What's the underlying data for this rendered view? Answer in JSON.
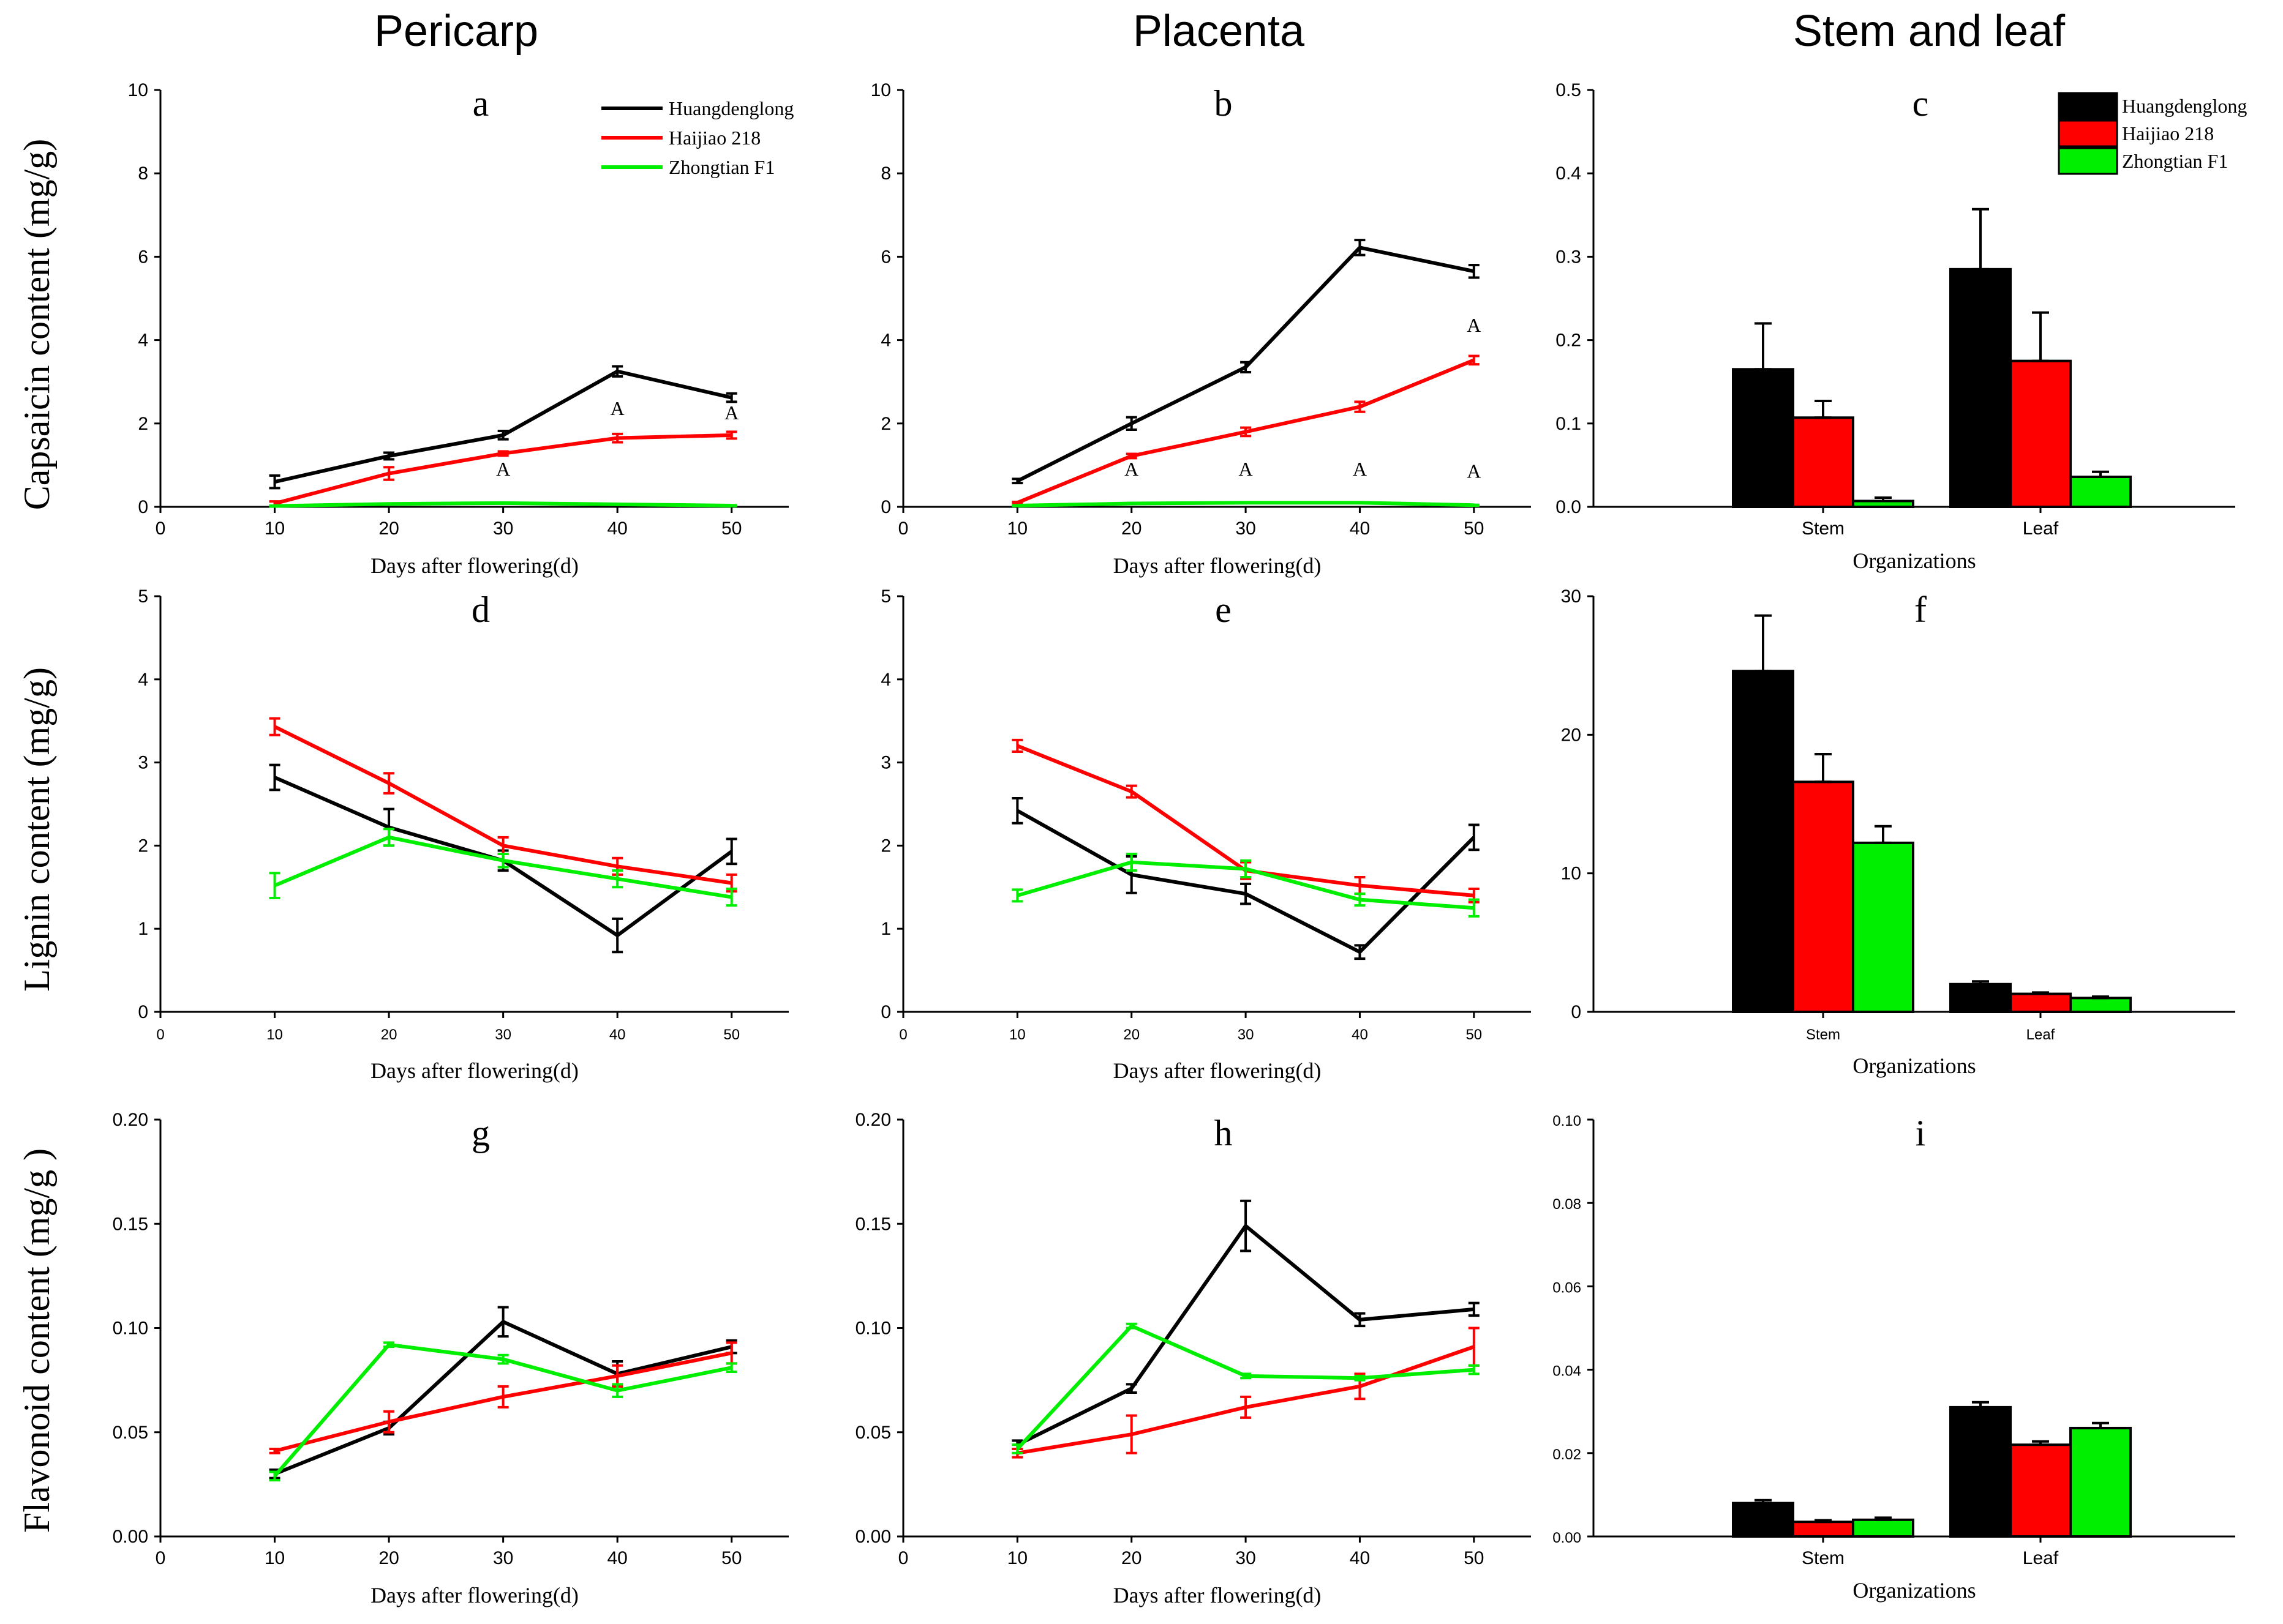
{
  "column_titles": [
    "Pericarp",
    "Placenta",
    "Stem and leaf"
  ],
  "row_labels": [
    "Capsaicin content (mg/g)",
    "Lignin content (mg/g)",
    "Flavonoid content (mg/g )"
  ],
  "colors": {
    "Huangdenglong": "#000000",
    "Haijiao 218": "#ff0000",
    "Zhongtian F1": "#00ee00"
  },
  "chart_data": [
    {
      "id": "a",
      "type": "line",
      "letter": "a",
      "xlabel": "Days after flowering(d)",
      "ylabel": "",
      "x": [
        10,
        20,
        30,
        40,
        50
      ],
      "xlim": [
        0,
        55
      ],
      "xticks": [
        0,
        10,
        20,
        30,
        40,
        50
      ],
      "ylim": [
        0,
        10
      ],
      "yticks": [
        0,
        2,
        4,
        6,
        8,
        10
      ],
      "legend": {
        "show": true,
        "placement": "top-right",
        "style": "line"
      },
      "series": [
        {
          "name": "Huangdenglong",
          "values": [
            0.6,
            1.22,
            1.72,
            3.25,
            2.62
          ],
          "errors": [
            0.15,
            0.08,
            0.1,
            0.12,
            0.1
          ]
        },
        {
          "name": "Haijiao 218",
          "values": [
            0.08,
            0.8,
            1.28,
            1.65,
            1.72
          ],
          "errors": [
            0.05,
            0.15,
            0.05,
            0.1,
            0.08
          ]
        },
        {
          "name": "Zhongtian F1",
          "values": [
            0.02,
            0.07,
            0.09,
            0.06,
            0.03
          ],
          "errors": [
            0.01,
            0.01,
            0.01,
            0.01,
            0.01
          ]
        }
      ],
      "annotations": [
        {
          "x": 30,
          "y": 0.75,
          "text": "A"
        },
        {
          "x": 40,
          "y": 2.2,
          "text": "A"
        },
        {
          "x": 50,
          "y": 2.1,
          "text": "A"
        }
      ]
    },
    {
      "id": "b",
      "type": "line",
      "letter": "b",
      "xlabel": "Days after flowering(d)",
      "ylabel": "",
      "x": [
        10,
        20,
        30,
        40,
        50
      ],
      "xlim": [
        0,
        55
      ],
      "xticks": [
        0,
        10,
        20,
        30,
        40,
        50
      ],
      "ylim": [
        0,
        10
      ],
      "yticks": [
        0,
        2,
        4,
        6,
        8,
        10
      ],
      "legend": {
        "show": false
      },
      "series": [
        {
          "name": "Huangdenglong",
          "values": [
            0.62,
            2.0,
            3.35,
            6.22,
            5.65
          ],
          "errors": [
            0.05,
            0.15,
            0.12,
            0.18,
            0.15
          ]
        },
        {
          "name": "Haijiao 218",
          "values": [
            0.1,
            1.22,
            1.8,
            2.4,
            3.52
          ],
          "errors": [
            0.02,
            0.05,
            0.1,
            0.12,
            0.1
          ]
        },
        {
          "name": "Zhongtian F1",
          "values": [
            0.03,
            0.08,
            0.1,
            0.1,
            0.04
          ],
          "errors": [
            0.01,
            0.01,
            0.01,
            0.01,
            0.01
          ]
        }
      ],
      "annotations": [
        {
          "x": 20,
          "y": 0.75,
          "text": "A"
        },
        {
          "x": 30,
          "y": 0.75,
          "text": "A"
        },
        {
          "x": 40,
          "y": 0.75,
          "text": "A"
        },
        {
          "x": 50,
          "y": 0.7,
          "text": "A"
        },
        {
          "x": 50,
          "y": 4.2,
          "text": "A"
        }
      ]
    },
    {
      "id": "c",
      "type": "bar",
      "letter": "c",
      "xlabel": "Organizations",
      "ylabel": "",
      "categories": [
        "Stem",
        "Leaf"
      ],
      "ylim": [
        0,
        0.5
      ],
      "yticks": [
        "0.0",
        "0.1",
        "0.2",
        "0.3",
        "0.4",
        "0.5"
      ],
      "legend": {
        "show": true,
        "placement": "top-right",
        "style": "box"
      },
      "series": [
        {
          "name": "Huangdenglong",
          "values": [
            0.165,
            0.285
          ],
          "errors": [
            0.055,
            0.072
          ]
        },
        {
          "name": "Haijiao 218",
          "values": [
            0.107,
            0.175
          ],
          "errors": [
            0.02,
            0.058
          ]
        },
        {
          "name": "Zhongtian F1",
          "values": [
            0.007,
            0.036
          ],
          "errors": [
            0.004,
            0.006
          ]
        }
      ]
    },
    {
      "id": "d",
      "type": "line",
      "letter": "d",
      "xlabel": "Days after flowering(d)",
      "ylabel": "",
      "x": [
        10,
        20,
        30,
        40,
        50
      ],
      "xlim": [
        0,
        55
      ],
      "xticks": [
        0,
        10,
        20,
        30,
        40,
        50
      ],
      "ylim": [
        0,
        5
      ],
      "yticks": [
        0,
        1,
        2,
        3,
        4,
        5
      ],
      "legend": {
        "show": false
      },
      "series": [
        {
          "name": "Huangdenglong",
          "values": [
            2.82,
            2.22,
            1.82,
            0.92,
            1.93
          ],
          "errors": [
            0.15,
            0.22,
            0.12,
            0.2,
            0.15
          ]
        },
        {
          "name": "Haijiao 218",
          "values": [
            3.43,
            2.75,
            2.0,
            1.75,
            1.55
          ],
          "errors": [
            0.1,
            0.12,
            0.1,
            0.1,
            0.1
          ]
        },
        {
          "name": "Zhongtian F1",
          "values": [
            1.52,
            2.1,
            1.82,
            1.6,
            1.38
          ],
          "errors": [
            0.15,
            0.1,
            0.08,
            0.1,
            0.1
          ]
        }
      ]
    },
    {
      "id": "e",
      "type": "line",
      "letter": "e",
      "xlabel": "Days after flowering(d)",
      "ylabel": "",
      "x": [
        10,
        20,
        30,
        40,
        50
      ],
      "xlim": [
        0,
        55
      ],
      "xticks": [
        0,
        10,
        20,
        30,
        40,
        50
      ],
      "ylim": [
        0,
        5
      ],
      "yticks": [
        0,
        1,
        2,
        3,
        4,
        5
      ],
      "legend": {
        "show": false
      },
      "series": [
        {
          "name": "Huangdenglong",
          "values": [
            2.42,
            1.65,
            1.42,
            0.72,
            2.1
          ],
          "errors": [
            0.15,
            0.22,
            0.12,
            0.08,
            0.15
          ]
        },
        {
          "name": "Haijiao 218",
          "values": [
            3.2,
            2.65,
            1.7,
            1.52,
            1.4
          ],
          "errors": [
            0.07,
            0.07,
            0.1,
            0.1,
            0.08
          ]
        },
        {
          "name": "Zhongtian F1",
          "values": [
            1.4,
            1.8,
            1.72,
            1.35,
            1.25
          ],
          "errors": [
            0.07,
            0.1,
            0.1,
            0.07,
            0.1
          ]
        }
      ]
    },
    {
      "id": "f",
      "type": "bar",
      "letter": "f",
      "xlabel": "Organizations",
      "ylabel": "",
      "categories": [
        "Stem",
        "Leaf"
      ],
      "ylim": [
        0,
        30
      ],
      "yticks": [
        "0",
        "10",
        "20",
        "30"
      ],
      "legend": {
        "show": false
      },
      "series": [
        {
          "name": "Huangdenglong",
          "values": [
            24.6,
            2.0
          ],
          "errors": [
            4.0,
            0.2
          ]
        },
        {
          "name": "Haijiao 218",
          "values": [
            16.6,
            1.3
          ],
          "errors": [
            2.0,
            0.1
          ]
        },
        {
          "name": "Zhongtian F1",
          "values": [
            12.2,
            1.0
          ],
          "errors": [
            1.2,
            0.1
          ]
        }
      ]
    },
    {
      "id": "g",
      "type": "line",
      "letter": "g",
      "xlabel": "Days after flowering(d)",
      "ylabel": "",
      "x": [
        10,
        20,
        30,
        40,
        50
      ],
      "xlim": [
        0,
        55
      ],
      "xticks": [
        0,
        10,
        20,
        30,
        40,
        50
      ],
      "ylim": [
        0,
        0.2
      ],
      "yticks": [
        "0.00",
        "0.05",
        "0.10",
        "0.15",
        "0.20"
      ],
      "legend": {
        "show": false
      },
      "series": [
        {
          "name": "Huangdenglong",
          "values": [
            0.03,
            0.052,
            0.103,
            0.078,
            0.091
          ],
          "errors": [
            0.002,
            0.003,
            0.007,
            0.006,
            0.003
          ]
        },
        {
          "name": "Haijiao 218",
          "values": [
            0.041,
            0.055,
            0.067,
            0.077,
            0.088
          ],
          "errors": [
            0.001,
            0.005,
            0.005,
            0.005,
            0.005
          ]
        },
        {
          "name": "Zhongtian F1",
          "values": [
            0.029,
            0.092,
            0.085,
            0.07,
            0.081
          ],
          "errors": [
            0.002,
            0.001,
            0.002,
            0.003,
            0.002
          ]
        }
      ]
    },
    {
      "id": "h",
      "type": "line",
      "letter": "h",
      "xlabel": "Days after flowering(d)",
      "ylabel": "",
      "x": [
        10,
        20,
        30,
        40,
        50
      ],
      "xlim": [
        0,
        55
      ],
      "xticks": [
        0,
        10,
        20,
        30,
        40,
        50
      ],
      "ylim": [
        0,
        0.2
      ],
      "yticks": [
        "0.00",
        "0.05",
        "0.10",
        "0.15",
        "0.20"
      ],
      "legend": {
        "show": false
      },
      "series": [
        {
          "name": "Huangdenglong",
          "values": [
            0.044,
            0.071,
            0.149,
            0.104,
            0.109
          ],
          "errors": [
            0.002,
            0.002,
            0.012,
            0.003,
            0.003
          ]
        },
        {
          "name": "Haijiao 218",
          "values": [
            0.04,
            0.049,
            0.062,
            0.072,
            0.091
          ],
          "errors": [
            0.002,
            0.009,
            0.005,
            0.006,
            0.009
          ]
        },
        {
          "name": "Zhongtian F1",
          "values": [
            0.042,
            0.101,
            0.077,
            0.076,
            0.08
          ],
          "errors": [
            0.002,
            0.001,
            0.001,
            0.001,
            0.002
          ]
        }
      ]
    },
    {
      "id": "i",
      "type": "bar",
      "letter": "i",
      "xlabel": "Organizations",
      "ylabel": "",
      "categories": [
        "Stem",
        "Leaf"
      ],
      "ylim": [
        0,
        0.1
      ],
      "yticks": [
        "0.00",
        "0.02",
        "0.04",
        "0.06",
        "0.08",
        "0.10"
      ],
      "legend": {
        "show": false
      },
      "series": [
        {
          "name": "Huangdenglong",
          "values": [
            0.008,
            0.031
          ],
          "errors": [
            0.0007,
            0.0012
          ]
        },
        {
          "name": "Haijiao 218",
          "values": [
            0.0035,
            0.022
          ],
          "errors": [
            0.0004,
            0.0008
          ]
        },
        {
          "name": "Zhongtian F1",
          "values": [
            0.004,
            0.026
          ],
          "errors": [
            0.0005,
            0.0012
          ]
        }
      ]
    }
  ]
}
